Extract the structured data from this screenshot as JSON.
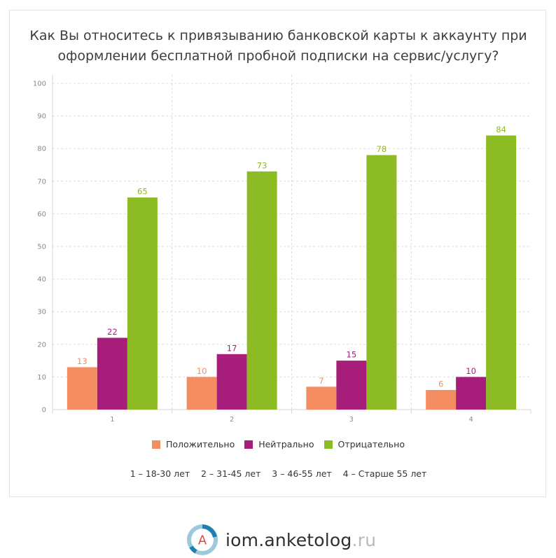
{
  "chart_data": {
    "type": "bar",
    "title": "Как Вы относитесь к привязыванию банковской карты к аккаунту при оформлении бесплатной пробной подписки на сервис/услугу?",
    "title_lines": [
      "Как Вы относитесь к привязыванию банковской карты к аккаунту при",
      "оформлении бесплатной пробной подписки на сервис/услугу?"
    ],
    "categories": [
      "1",
      "2",
      "3",
      "4"
    ],
    "series": [
      {
        "name": "Положительно",
        "color": "#f58d62",
        "values": [
          13,
          10,
          7,
          6
        ]
      },
      {
        "name": "Нейтрально",
        "color": "#a61e7a",
        "values": [
          22,
          17,
          15,
          10
        ]
      },
      {
        "name": "Отрицательно",
        "color": "#8dbb24",
        "values": [
          65,
          73,
          78,
          84
        ]
      }
    ],
    "ylim": [
      0,
      100
    ],
    "yticks": [
      0,
      10,
      20,
      30,
      40,
      50,
      60,
      70,
      80,
      90,
      100
    ],
    "xlabel": "",
    "ylabel": "",
    "grid": true,
    "legend_position": "bottom",
    "footnote": "1 – 18-30 лет    2 – 31-45 лет    3 – 46-55 лет    4 – Старше 55 лет"
  },
  "brand": {
    "icon": "anketolog-logo-icon",
    "letter": "A",
    "name": "iom.anketolog",
    "tld": ".ru"
  }
}
